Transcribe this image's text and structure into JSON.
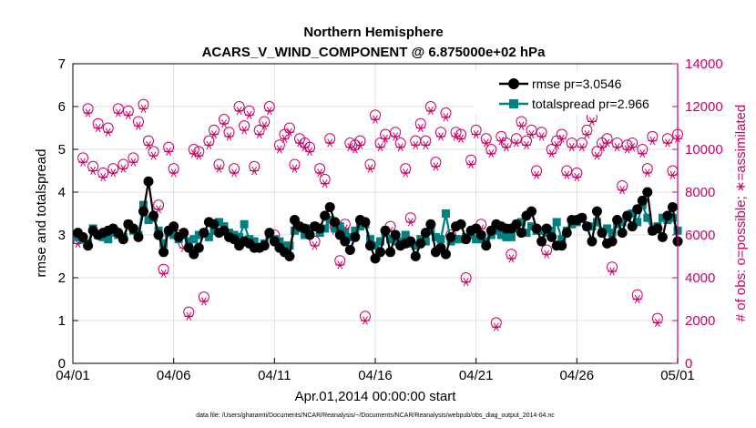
{
  "chart_data": {
    "type": "line",
    "title": "Northern Hemisphere",
    "subtitle": "ACARS_V_WIND_COMPONENT @ 6.875000e+02 hPa",
    "xlabel": "Apr.01,2014 00:00:00 start",
    "ylabel_left": "rmse and totalspread",
    "ylabel_right": "# of obs: o=possible; ∗=assimilated",
    "footnote": "data file: /Users/gharamti/Documents/NCAR/Reanalysis/~/Documents/NCAR/Reanalysis/webpub/obs_diag_output_2014-04.nc",
    "x_ticks": [
      "04/01",
      "04/06",
      "04/11",
      "04/16",
      "04/21",
      "04/26",
      "05/01"
    ],
    "xlim_days": [
      0,
      30
    ],
    "ylim_left": [
      0,
      7
    ],
    "ylim_right": [
      0,
      14000
    ],
    "y_ticks_left": [
      "0",
      "1",
      "2",
      "3",
      "4",
      "5",
      "6",
      "7"
    ],
    "y_ticks_right": [
      "0",
      "2000",
      "4000",
      "6000",
      "8000",
      "10000",
      "12000",
      "14000"
    ],
    "grid": true,
    "legend_position": "top-right",
    "colors": {
      "rmse": "#000000",
      "totalspread": "#008080",
      "obs": "#cc0066",
      "right_axis": "#cc0066"
    },
    "legend": [
      "rmse pr=3.0546",
      "totalspread pr=2.966"
    ],
    "x_days": [
      0.25,
      0.5,
      0.75,
      1.0,
      1.25,
      1.5,
      1.75,
      2.0,
      2.25,
      2.5,
      2.75,
      3.0,
      3.25,
      3.5,
      3.75,
      4.0,
      4.25,
      4.5,
      4.75,
      5.0,
      5.25,
      5.5,
      5.75,
      6.0,
      6.25,
      6.5,
      6.75,
      7.0,
      7.25,
      7.5,
      7.75,
      8.0,
      8.25,
      8.5,
      8.75,
      9.0,
      9.25,
      9.5,
      9.75,
      10.0,
      10.25,
      10.5,
      10.75,
      11.0,
      11.25,
      11.5,
      11.75,
      12.0,
      12.25,
      12.5,
      12.75,
      13.0,
      13.25,
      13.5,
      13.75,
      14.0,
      14.25,
      14.5,
      14.75,
      15.0,
      15.25,
      15.5,
      15.75,
      16.0,
      16.25,
      16.5,
      16.75,
      17.0,
      17.25,
      17.5,
      17.75,
      18.0,
      18.25,
      18.5,
      18.75,
      19.0,
      19.25,
      19.5,
      19.75,
      20.0,
      20.25,
      20.5,
      20.75,
      21.0,
      21.25,
      21.5,
      21.75,
      22.0,
      22.25,
      22.5,
      22.75,
      23.0,
      23.25,
      23.5,
      23.75,
      24.0,
      24.25,
      24.5,
      24.75,
      25.0,
      25.25,
      25.5,
      25.75,
      26.0,
      26.25,
      26.5,
      26.75,
      27.0,
      27.25,
      27.5,
      27.75,
      28.0,
      28.25,
      28.5,
      28.75,
      29.0,
      29.25,
      29.5,
      29.75,
      30.0
    ],
    "series": [
      {
        "name": "rmse pr=3.0546",
        "values": [
          3.05,
          2.95,
          2.75,
          3.1,
          3.0,
          3.05,
          3.1,
          3.15,
          3.05,
          2.9,
          3.25,
          3.15,
          2.95,
          3.55,
          4.25,
          3.45,
          3.0,
          2.6,
          3.1,
          3.2,
          2.95,
          3.05,
          2.7,
          2.55,
          2.7,
          3.05,
          3.3,
          3.25,
          3.05,
          3.1,
          2.95,
          2.9,
          2.75,
          2.85,
          2.8,
          2.7,
          2.7,
          2.75,
          3.05,
          2.85,
          2.7,
          2.6,
          2.5,
          3.35,
          3.2,
          3.15,
          3.0,
          3.2,
          3.15,
          3.45,
          3.65,
          3.3,
          3.0,
          2.85,
          2.65,
          2.95,
          3.35,
          3.3,
          2.75,
          2.45,
          2.6,
          3.1,
          2.6,
          3.0,
          2.75,
          2.8,
          2.85,
          2.5,
          2.8,
          3.05,
          3.25,
          2.6,
          2.7,
          2.55,
          2.95,
          3.2,
          3.25,
          2.9,
          3.1,
          3.15,
          3.0,
          2.75,
          3.1,
          3.25,
          3.2,
          3.15,
          3.15,
          3.25,
          3.05,
          3.45,
          3.55,
          3.15,
          2.85,
          3.15,
          2.95,
          2.75,
          2.75,
          3.05,
          3.35,
          3.35,
          3.4,
          3.2,
          2.85,
          3.55,
          3.05,
          2.8,
          2.85,
          3.35,
          3.05,
          3.45,
          3.2,
          3.6,
          3.8,
          4.0,
          3.1,
          3.15,
          2.95,
          3.45,
          3.65,
          2.85
        ]
      },
      {
        "name": "totalspread pr=2.966",
        "values": [
          2.95,
          2.9,
          2.8,
          3.15,
          3.0,
          2.95,
          2.9,
          3.05,
          3.0,
          2.95,
          3.25,
          3.1,
          3.0,
          3.7,
          3.35,
          3.4,
          3.1,
          2.8,
          3.05,
          3.0,
          2.9,
          3.0,
          2.85,
          2.9,
          3.0,
          3.05,
          2.95,
          3.1,
          3.3,
          3.2,
          3.05,
          3.0,
          2.95,
          3.25,
          2.9,
          2.85,
          2.7,
          2.8,
          3.0,
          2.9,
          2.85,
          2.75,
          2.75,
          3.1,
          3.15,
          3.0,
          3.15,
          3.2,
          3.05,
          3.15,
          3.35,
          3.15,
          3.2,
          3.05,
          2.95,
          3.1,
          3.2,
          3.25,
          2.9,
          2.75,
          2.85,
          3.05,
          2.9,
          2.85,
          2.85,
          3.0,
          2.8,
          2.75,
          2.9,
          2.85,
          3.1,
          2.95,
          2.9,
          3.5,
          2.85,
          2.9,
          2.9,
          2.95,
          3.0,
          2.9,
          2.9,
          2.85,
          3.0,
          3.1,
          3.0,
          2.95,
          2.95,
          3.15,
          3.3,
          3.05,
          3.2,
          3.1,
          3.1,
          3.05,
          3.1,
          3.3,
          2.9,
          3.1,
          3.25,
          3.3,
          3.4,
          3.2,
          3.2,
          3.3,
          3.05,
          3.15,
          3.05,
          3.25,
          3.3,
          3.4,
          3.5,
          3.3,
          3.7,
          3.4,
          3.1,
          3.2,
          3.4,
          3.35,
          3.4,
          3.1
        ]
      },
      {
        "name": "possible",
        "values": [
          5800,
          9600,
          11900,
          9200,
          11200,
          8900,
          11000,
          9100,
          11900,
          9300,
          11800,
          9600,
          11300,
          12100,
          10400,
          9900,
          7400,
          4400,
          10100,
          9100,
          6000,
          5600,
          2400,
          10000,
          9900,
          3100,
          10400,
          10900,
          9300,
          11400,
          10800,
          9100,
          12000,
          11100,
          11800,
          9200,
          10900,
          11300,
          12000,
          6000,
          10200,
          10700,
          11000,
          9300,
          10500,
          10300,
          10100,
          5700,
          9100,
          8600,
          10500,
          6400,
          4800,
          6500,
          10300,
          10200,
          10400,
          2200,
          9300,
          11600,
          10300,
          10700,
          6400,
          10800,
          10300,
          9100,
          6800,
          10400,
          11200,
          10400,
          12000,
          9400,
          10800,
          11700,
          6000,
          10800,
          10700,
          4000,
          9500,
          10900,
          6500,
          10500,
          10000,
          1900,
          10600,
          10300,
          5100,
          10500,
          11300,
          10400,
          10900,
          9000,
          10800,
          5300,
          10000,
          10400,
          10700,
          9000,
          10300,
          8900,
          10300,
          10900,
          11500,
          9900,
          10300,
          10500,
          4500,
          10300,
          8300,
          10200,
          10300,
          3200,
          10000,
          9100,
          10600,
          2100,
          12200,
          10500,
          9000,
          10700
        ]
      },
      {
        "name": "assimilated",
        "values": [
          5600,
          9400,
          11700,
          9000,
          11000,
          8700,
          10800,
          8900,
          11700,
          9100,
          11600,
          9400,
          11100,
          11900,
          10200,
          9700,
          7200,
          4200,
          9900,
          8900,
          5800,
          5400,
          2200,
          9800,
          9700,
          2900,
          10200,
          10700,
          9100,
          11200,
          10600,
          8900,
          11800,
          10900,
          11600,
          9000,
          10700,
          11100,
          11800,
          5800,
          10000,
          10500,
          10800,
          9100,
          10300,
          10100,
          9900,
          5500,
          8900,
          8400,
          10300,
          6200,
          4600,
          6300,
          10100,
          10000,
          10200,
          2000,
          9100,
          11400,
          10100,
          10500,
          6200,
          10600,
          10100,
          8900,
          6600,
          10200,
          11000,
          10200,
          11800,
          9200,
          10600,
          11500,
          5800,
          10600,
          10500,
          3800,
          9300,
          10700,
          6300,
          10300,
          9800,
          1700,
          10400,
          10100,
          4900,
          10300,
          11100,
          10200,
          10700,
          8800,
          10600,
          5100,
          9800,
          10200,
          10500,
          8800,
          10100,
          8700,
          10100,
          10700,
          11300,
          9700,
          10100,
          10300,
          4300,
          10100,
          8100,
          10000,
          10100,
          3000,
          9800,
          8900,
          10400,
          1900,
          12000,
          10300,
          8800,
          10500
        ]
      }
    ]
  }
}
